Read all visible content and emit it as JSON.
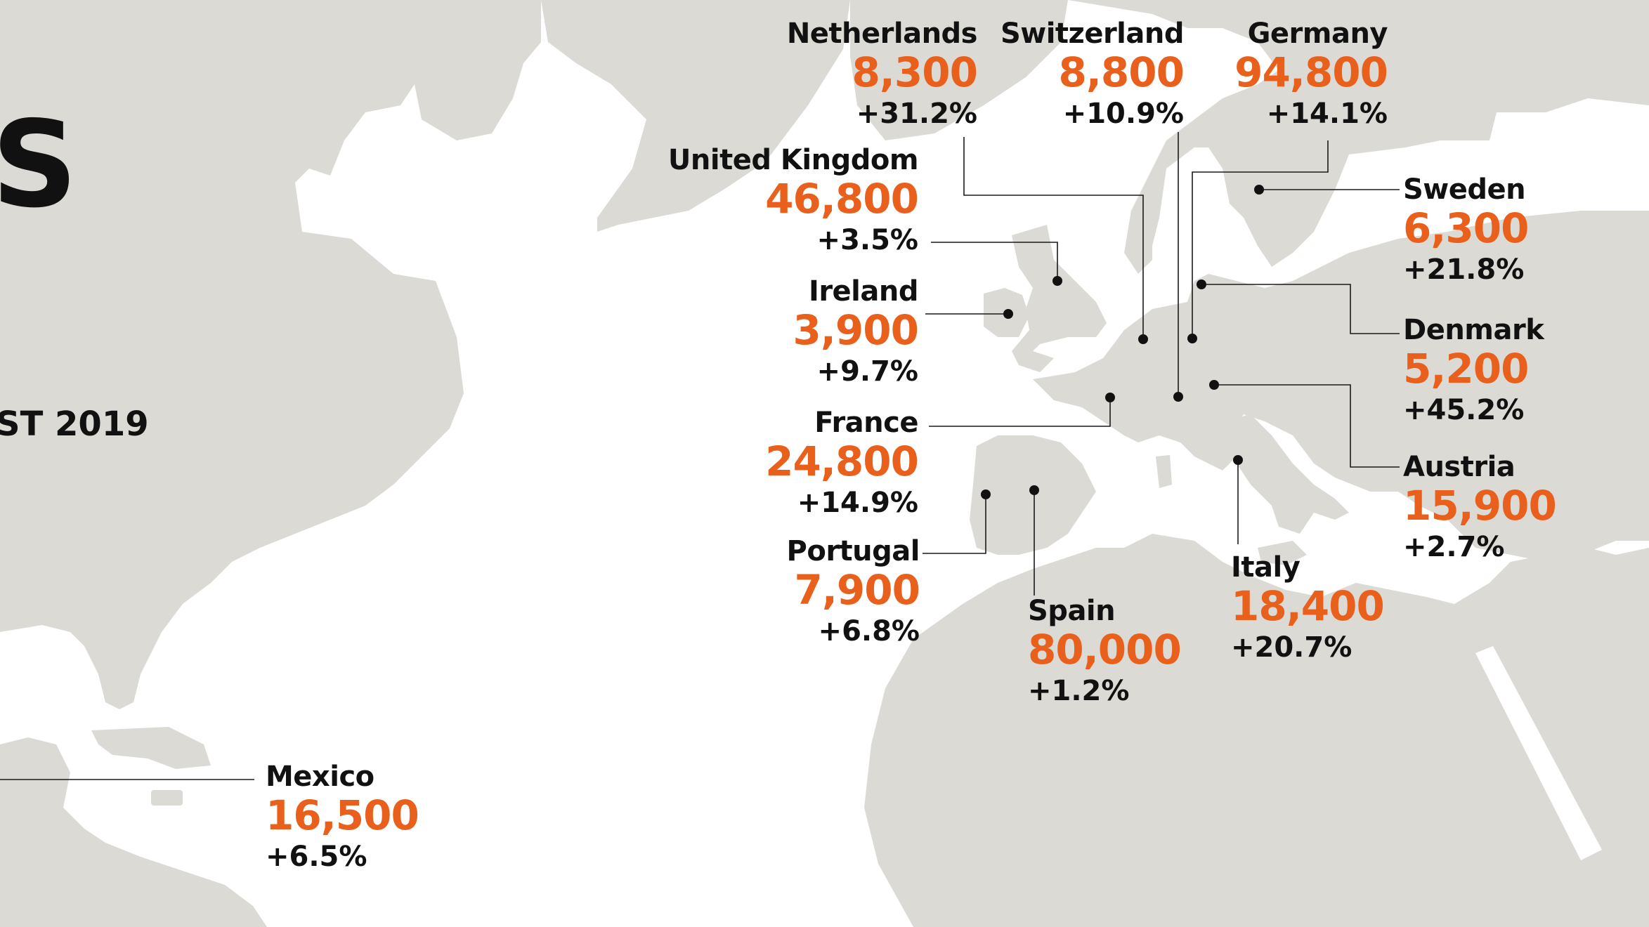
{
  "colors": {
    "value": "#e8601c",
    "land": "#dcdad4",
    "text": "#111111"
  },
  "cropped_text": {
    "title_fragment": "S",
    "date_fragment": "ST 2019"
  },
  "countries": [
    {
      "id": "netherlands",
      "name": "Netherlands",
      "value": "8,300",
      "change": "+31.2%"
    },
    {
      "id": "switzerland",
      "name": "Switzerland",
      "value": "8,800",
      "change": "+10.9%"
    },
    {
      "id": "germany",
      "name": "Germany",
      "value": "94,800",
      "change": "+14.1%"
    },
    {
      "id": "united-kingdom",
      "name": "United Kingdom",
      "value": "46,800",
      "change": "+3.5%"
    },
    {
      "id": "sweden",
      "name": "Sweden",
      "value": "6,300",
      "change": "+21.8%"
    },
    {
      "id": "ireland",
      "name": "Ireland",
      "value": "3,900",
      "change": "+9.7%"
    },
    {
      "id": "denmark",
      "name": "Denmark",
      "value": "5,200",
      "change": "+45.2%"
    },
    {
      "id": "france",
      "name": "France",
      "value": "24,800",
      "change": "+14.9%"
    },
    {
      "id": "austria",
      "name": "Austria",
      "value": "15,900",
      "change": "+2.7%"
    },
    {
      "id": "portugal",
      "name": "Portugal",
      "value": "7,900",
      "change": "+6.8%"
    },
    {
      "id": "italy",
      "name": "Italy",
      "value": "18,400",
      "change": "+20.7%"
    },
    {
      "id": "spain",
      "name": "Spain",
      "value": "80,000",
      "change": "+1.2%"
    },
    {
      "id": "mexico",
      "name": "Mexico",
      "value": "16,500",
      "change": "+6.5%"
    }
  ]
}
